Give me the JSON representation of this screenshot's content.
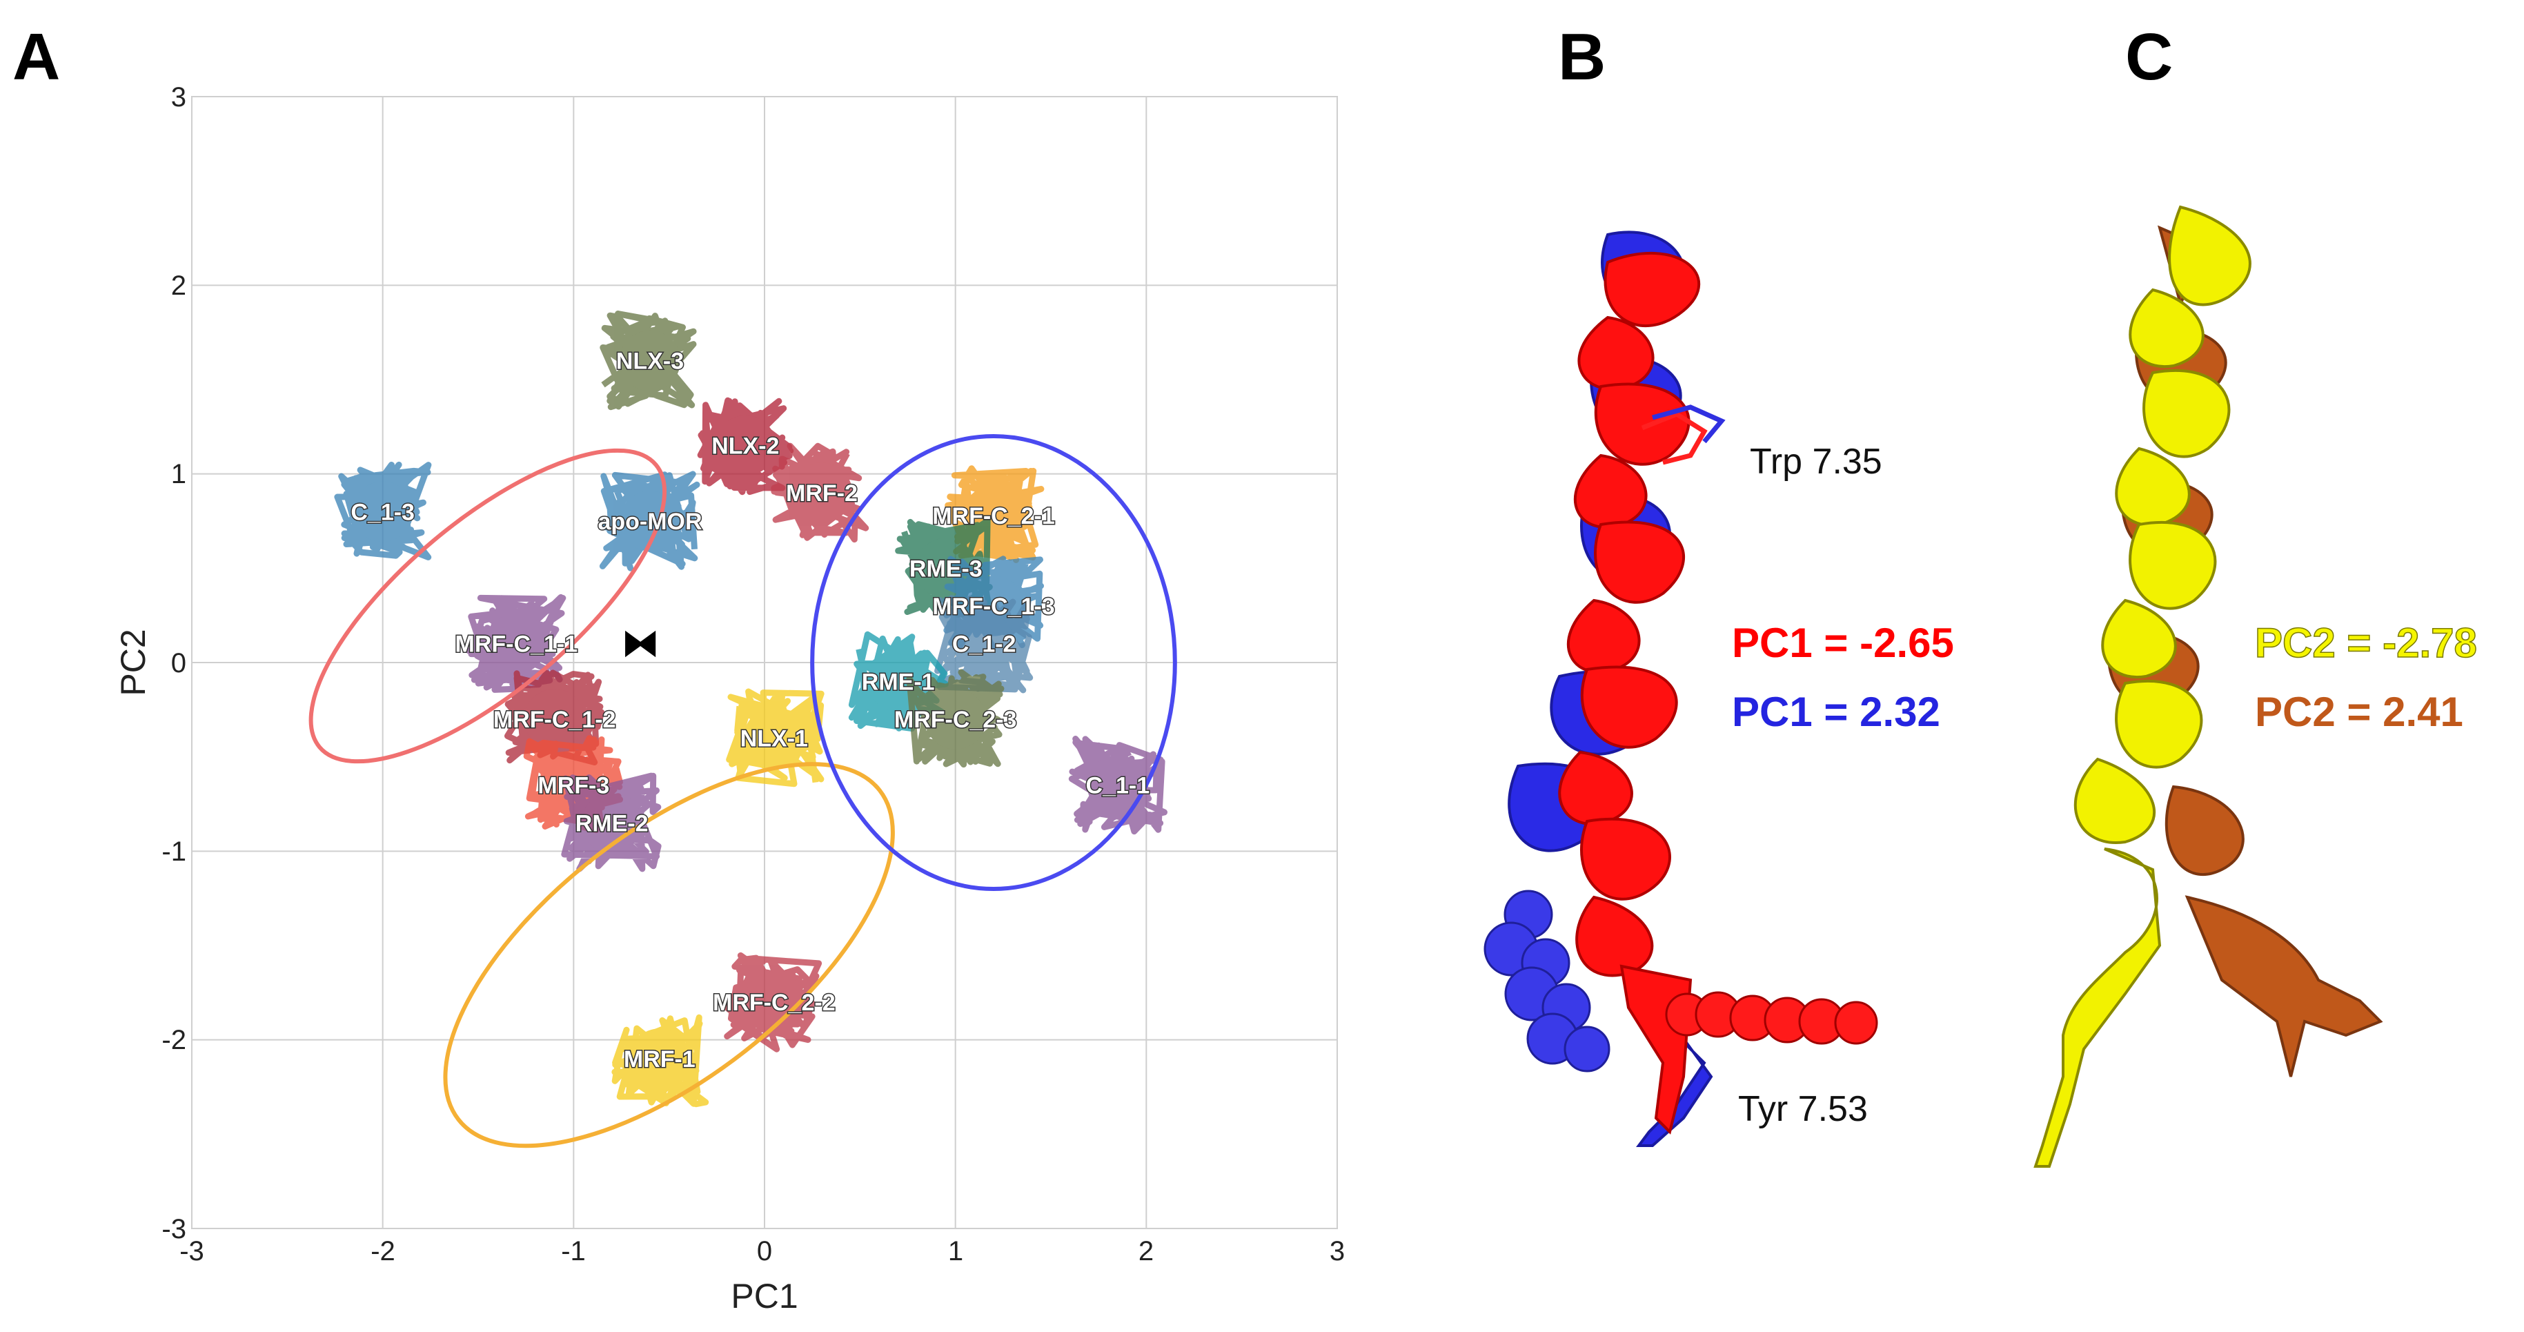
{
  "panels": {
    "a": "A",
    "b": "B",
    "c": "C"
  },
  "chart_data": {
    "type": "scatter",
    "title": "",
    "xlabel": "PC1",
    "ylabel": "PC2",
    "xlim": [
      -3,
      3
    ],
    "ylim": [
      -3,
      3
    ],
    "xticks": [
      "-3",
      "-2",
      "-1",
      "0",
      "1",
      "2",
      "3"
    ],
    "yticks": [
      "3",
      "2",
      "1",
      "0",
      "-1",
      "-2",
      "-3"
    ],
    "grid": true,
    "clusters": [
      {
        "label": "NLX-3",
        "x": -0.6,
        "y": 1.6,
        "color": "#6b7a4a"
      },
      {
        "label": "NLX-2",
        "x": -0.1,
        "y": 1.15,
        "color": "#b3263a"
      },
      {
        "label": "MRF-2",
        "x": 0.3,
        "y": 0.9,
        "color": "#c0404f"
      },
      {
        "label": "apo-MOR",
        "x": -0.6,
        "y": 0.75,
        "color": "#3f86b8"
      },
      {
        "label": "C_1-3",
        "x": -2.0,
        "y": 0.8,
        "color": "#3f86b8"
      },
      {
        "label": "MRF-C_1-1",
        "x": -1.3,
        "y": 0.1,
        "color": "#8d5a9a"
      },
      {
        "label": "MRF-C_1-2",
        "x": -1.1,
        "y": -0.3,
        "color": "#b03040"
      },
      {
        "label": "MRF-3",
        "x": -1.0,
        "y": -0.65,
        "color": "#f0503a"
      },
      {
        "label": "RME-2",
        "x": -0.8,
        "y": -0.85,
        "color": "#8d5a9a"
      },
      {
        "label": "NLX-1",
        "x": 0.05,
        "y": -0.4,
        "color": "#f5cc20"
      },
      {
        "label": "MRF-C_2-1",
        "x": 1.2,
        "y": 0.78,
        "color": "#f5a020"
      },
      {
        "label": "RME-3",
        "x": 0.95,
        "y": 0.5,
        "color": "#2a7a5a"
      },
      {
        "label": "MRF-C_1-3",
        "x": 1.2,
        "y": 0.3,
        "color": "#3f86b8"
      },
      {
        "label": "C_1-2",
        "x": 1.15,
        "y": 0.1,
        "color": "#5a8ab0"
      },
      {
        "label": "RME-1",
        "x": 0.7,
        "y": -0.1,
        "color": "#1fa0b0"
      },
      {
        "label": "MRF-C_2-3",
        "x": 1.0,
        "y": -0.3,
        "color": "#6b7a4a"
      },
      {
        "label": "C_1-1",
        "x": 1.85,
        "y": -0.65,
        "color": "#8d5a9a"
      },
      {
        "label": "MRF-C_2-2",
        "x": 0.05,
        "y": -1.8,
        "color": "#c04050"
      },
      {
        "label": "MRF-1",
        "x": -0.55,
        "y": -2.1,
        "color": "#f5cc20"
      }
    ],
    "ellipses": [
      {
        "cx": -1.45,
        "cy": 0.3,
        "rx": 1.15,
        "ry": 0.45,
        "angle_deg": -40,
        "color": "#f07070"
      },
      {
        "cx": -0.5,
        "cy": -1.55,
        "rx": 1.4,
        "ry": 0.65,
        "angle_deg": -38,
        "color": "#f5b035"
      },
      {
        "cx": 1.2,
        "cy": 0.0,
        "rx": 0.95,
        "ry": 1.2,
        "angle_deg": 0,
        "color": "#4a4af0"
      }
    ],
    "marker": {
      "label": "⧓",
      "x": -0.65,
      "y": 0.1
    }
  },
  "panel_b": {
    "trp_label": "Trp 7.35",
    "tyr_label": "Tyr 7.53",
    "pc1_red": "PC1 = -2.65",
    "pc1_blue": "PC1 = 2.32",
    "red_color": "#ff0000",
    "blue_color": "#2424e0"
  },
  "panel_c": {
    "pc2_yellow": "PC2 = -2.78",
    "pc2_brown": "PC2 = 2.41",
    "yellow_color": "#f5f500",
    "brown_color": "#c0581a"
  }
}
